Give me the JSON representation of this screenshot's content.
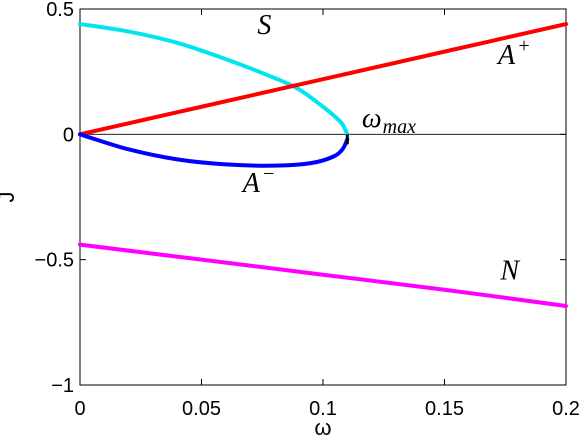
{
  "chart_data": {
    "type": "line",
    "xlabel": "ω",
    "ylabel": "J",
    "xlim": [
      0,
      0.2
    ],
    "ylim": [
      -1,
      0.5
    ],
    "x_ticks": [
      0,
      0.05,
      0.1,
      0.15,
      0.2
    ],
    "x_tick_labels": [
      "0",
      "0.05",
      "0.1",
      "0.15",
      "0.2"
    ],
    "y_ticks": [
      -1,
      -0.5,
      0,
      0.5
    ],
    "y_tick_labels": [
      "−1",
      "−0.5",
      "0",
      "0.5"
    ],
    "grid": false,
    "zero_line": true,
    "series": [
      {
        "name": "S",
        "color": "#00e5ee",
        "x": [
          0,
          0.02,
          0.04,
          0.06,
          0.08,
          0.09,
          0.1,
          0.105,
          0.108,
          0.11
        ],
        "y": [
          0.44,
          0.41,
          0.365,
          0.3,
          0.225,
          0.18,
          0.11,
          0.07,
          0.04,
          0.0
        ]
      },
      {
        "name": "A+",
        "color": "#ff0000",
        "x": [
          0,
          0.05,
          0.1,
          0.15,
          0.2
        ],
        "y": [
          0.0,
          0.11,
          0.22,
          0.33,
          0.44
        ]
      },
      {
        "name": "A−",
        "color": "#0000ff",
        "x": [
          0,
          0.02,
          0.04,
          0.06,
          0.08,
          0.095,
          0.104,
          0.108,
          0.11
        ],
        "y": [
          0.0,
          -0.06,
          -0.1,
          -0.12,
          -0.125,
          -0.115,
          -0.09,
          -0.06,
          -0.02
        ]
      },
      {
        "name": "N",
        "color": "#ff00ff",
        "x": [
          0,
          0.05,
          0.1,
          0.15,
          0.2
        ],
        "y": [
          -0.44,
          -0.5,
          -0.56,
          -0.62,
          -0.685
        ]
      }
    ],
    "annotations": [
      {
        "text": "S",
        "x": 0.073,
        "y": 0.4
      },
      {
        "text": "A",
        "sup": "+",
        "x": 0.172,
        "y": 0.28
      },
      {
        "text": "A",
        "sup": "−",
        "x": 0.067,
        "y": -0.23
      },
      {
        "text": "N",
        "x": 0.173,
        "y": -0.58
      },
      {
        "text": "ω",
        "sub": "max",
        "x": 0.116,
        "y": 0.03
      }
    ],
    "marker": {
      "name": "ω_max tick",
      "x": 0.11,
      "y_from": -0.04,
      "y_to": 0.0
    }
  }
}
